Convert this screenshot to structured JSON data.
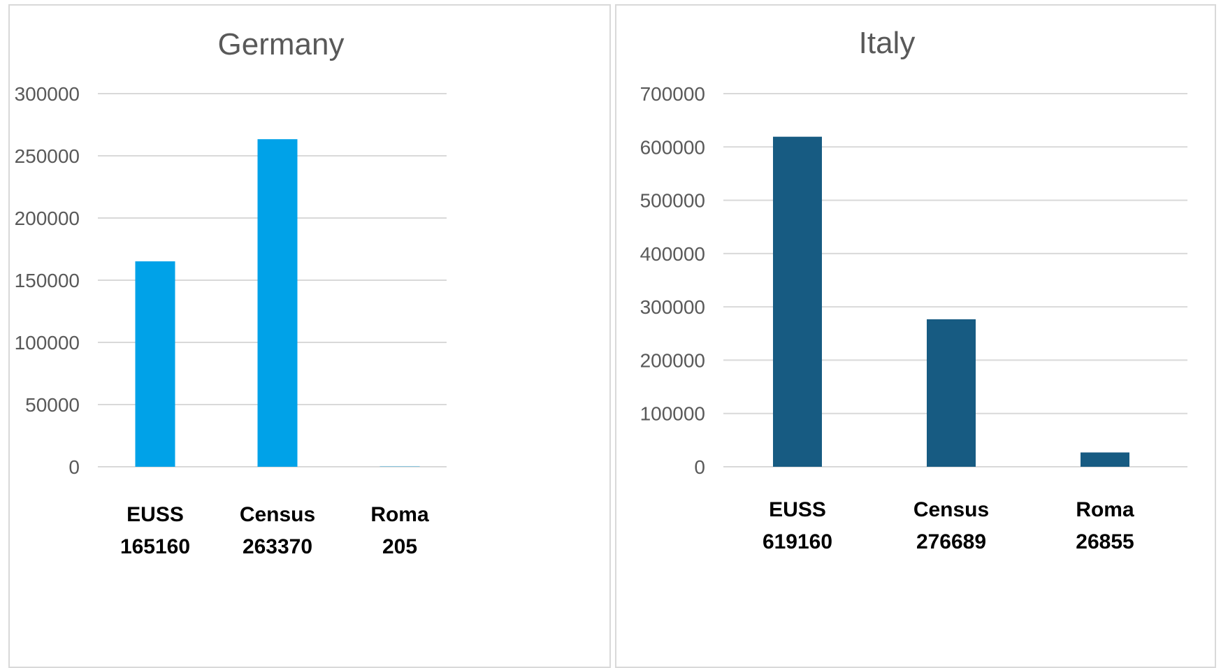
{
  "chart_data": [
    {
      "type": "bar",
      "title": "Germany",
      "categories": [
        "EUSS",
        "Census",
        "Roma"
      ],
      "category_values": [
        "165160",
        "263370",
        "205"
      ],
      "values": [
        165160,
        263370,
        205
      ],
      "ylim": [
        0,
        300000
      ],
      "yticks": [
        0,
        50000,
        100000,
        150000,
        200000,
        250000,
        300000
      ],
      "ytick_labels": [
        "0",
        "50000",
        "100000",
        "150000",
        "200000",
        "250000",
        "300000"
      ],
      "grid": true,
      "color": "#00a2e8"
    },
    {
      "type": "bar",
      "title": "Italy",
      "categories": [
        "EUSS",
        "Census",
        "Roma"
      ],
      "category_values": [
        "619160",
        "276689",
        "26855"
      ],
      "values": [
        619160,
        276689,
        26855
      ],
      "ylim": [
        0,
        700000
      ],
      "yticks": [
        0,
        100000,
        200000,
        300000,
        400000,
        500000,
        600000,
        700000
      ],
      "ytick_labels": [
        "0",
        "100000",
        "200000",
        "300000",
        "400000",
        "500000",
        "600000",
        "700000"
      ],
      "grid": true,
      "color": "#175b82"
    }
  ]
}
